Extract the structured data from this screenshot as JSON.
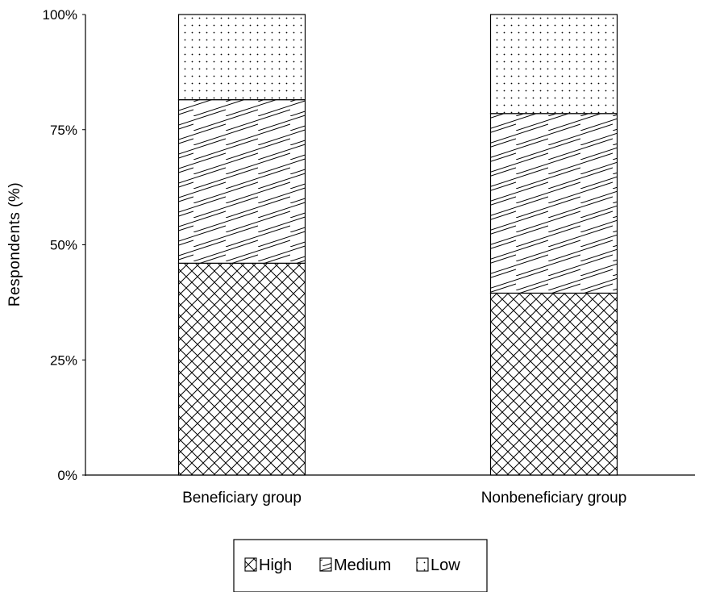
{
  "chart_data": {
    "type": "bar",
    "stacked": true,
    "percent": true,
    "categories": [
      "Beneficiary group",
      "Nonbeneficiary group"
    ],
    "series": [
      {
        "name": "High",
        "values": [
          46,
          39.5
        ],
        "pattern": "crosshatch"
      },
      {
        "name": "Medium",
        "values": [
          35.5,
          39
        ],
        "pattern": "diagonal"
      },
      {
        "name": "Low",
        "values": [
          18.5,
          21.5
        ],
        "pattern": "dots"
      }
    ],
    "title": "",
    "xlabel": "",
    "ylabel": "Respondents (%)",
    "ylim": [
      0,
      100
    ],
    "yticks": [
      0,
      25,
      50,
      75,
      100
    ],
    "ytick_labels": [
      "0%",
      "25%",
      "50%",
      "75%",
      "100%"
    ],
    "grid": false,
    "legend_position": "bottom-center",
    "legend_labels": [
      "High",
      "Medium",
      "Low"
    ]
  }
}
